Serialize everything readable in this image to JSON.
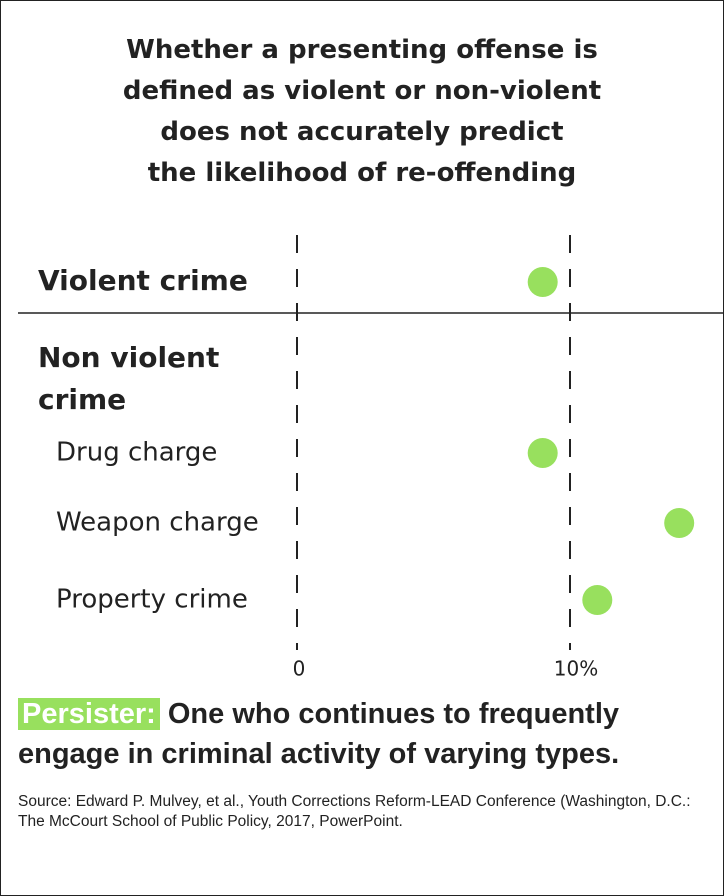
{
  "chart_data": {
    "type": "dot",
    "title": "Whether a presenting offense is\ndefined as violent or non-violent\ndoes not accurately predict\nthe likelihood of re-offending",
    "categories": [
      "Violent crime",
      "Drug charge",
      "Weapon charge",
      "Property crime"
    ],
    "group_label": "Non violent crime",
    "values": [
      9,
      9,
      14,
      11
    ],
    "color": "#98e05e",
    "xlim": [
      0,
      15
    ],
    "xticks": [
      0,
      {
        "value": 10,
        "label": "10%"
      }
    ],
    "definition_term": "Persister:",
    "definition_text": "One who continues to frequently engage in criminal activity of varying types.",
    "source": "Source: Edward P. Mulvey, et al., Youth Corrections Reform-LEAD Conference (Washington, D.C.: The McCourt School of Public Policy, 2017, PowerPoint."
  }
}
